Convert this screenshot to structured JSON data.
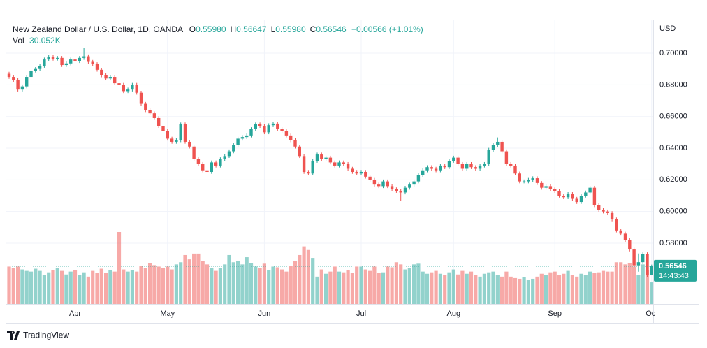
{
  "chart_data": {
    "type": "candlestick",
    "title": "New Zealand Dollar / U.S. Dollar, 1D, OANDA",
    "header_ohlc": [
      {
        "key": "O",
        "value": "0.55980"
      },
      {
        "key": "H",
        "value": "0.56647"
      },
      {
        "key": "L",
        "value": "0.55980"
      },
      {
        "key": "C",
        "value": "0.56546"
      }
    ],
    "change": "+0.00566 (+1.01%)",
    "vol_title": "Vol",
    "vol_value": "30.052K",
    "currency": "USD",
    "last_price_label": "0.56546",
    "countdown": "14:43:43",
    "brand": "TradingView",
    "up_color": "#26a69a",
    "down_color": "#ef5350",
    "grid": true,
    "ylim": [
      0.5416,
      0.7212
    ],
    "yticks": [
      {
        "value": 0.58,
        "label": "0.58000"
      },
      {
        "value": 0.6,
        "label": "0.60000"
      },
      {
        "value": 0.62,
        "label": "0.62000"
      },
      {
        "value": 0.64,
        "label": "0.64000"
      },
      {
        "value": 0.66,
        "label": "0.66000"
      },
      {
        "value": 0.68,
        "label": "0.68000"
      },
      {
        "value": 0.7,
        "label": "0.70000"
      }
    ],
    "categories": [
      null,
      null,
      null,
      null,
      null,
      null,
      null,
      null,
      null,
      null,
      null,
      null,
      null,
      null,
      null,
      "Apr",
      null,
      null,
      null,
      null,
      null,
      null,
      null,
      null,
      null,
      null,
      null,
      null,
      null,
      null,
      null,
      null,
      null,
      null,
      null,
      null,
      "May",
      null,
      null,
      null,
      null,
      null,
      null,
      null,
      null,
      null,
      null,
      null,
      null,
      null,
      null,
      null,
      null,
      null,
      null,
      null,
      null,
      null,
      "Jun",
      null,
      null,
      null,
      null,
      null,
      null,
      null,
      null,
      null,
      null,
      null,
      null,
      null,
      null,
      null,
      null,
      null,
      null,
      null,
      null,
      null,
      "Jul",
      null,
      null,
      null,
      null,
      null,
      null,
      null,
      null,
      null,
      null,
      null,
      null,
      null,
      null,
      null,
      null,
      null,
      null,
      null,
      null,
      "Aug",
      null,
      null,
      null,
      null,
      null,
      null,
      null,
      null,
      null,
      null,
      null,
      null,
      null,
      null,
      null,
      null,
      null,
      null,
      null,
      null,
      null,
      null,
      "Sep",
      null,
      null,
      null,
      null,
      null,
      null,
      null,
      null,
      null,
      null,
      null,
      null,
      null,
      null,
      null,
      null,
      null,
      null,
      null,
      null,
      null,
      "Oct"
    ],
    "open": [
      0.687,
      0.685,
      0.683,
      0.677,
      0.679,
      0.685,
      0.689,
      0.69,
      0.692,
      0.696,
      0.6975,
      0.6965,
      0.697,
      0.6925,
      0.6935,
      0.696,
      0.695,
      0.697,
      0.698,
      0.6945,
      0.693,
      0.6895,
      0.686,
      0.684,
      0.685,
      0.681,
      0.68,
      0.676,
      0.677,
      0.68,
      0.675,
      0.668,
      0.664,
      0.662,
      0.659,
      0.654,
      0.651,
      0.646,
      0.644,
      0.645,
      0.655,
      0.644,
      0.641,
      0.633,
      0.63,
      0.626,
      0.625,
      0.631,
      0.629,
      0.633,
      0.635,
      0.638,
      0.642,
      0.646,
      0.647,
      0.648,
      0.652,
      0.655,
      0.654,
      0.65,
      0.6545,
      0.6555,
      0.652,
      0.651,
      0.648,
      0.645,
      0.641,
      0.635,
      0.625,
      0.624,
      0.632,
      0.636,
      0.633,
      0.634,
      0.631,
      0.629,
      0.631,
      0.63,
      0.627,
      0.625,
      0.624,
      0.625,
      0.622,
      0.62,
      0.617,
      0.616,
      0.619,
      0.616,
      0.614,
      0.613,
      0.612,
      0.615,
      0.617,
      0.619,
      0.623,
      0.626,
      0.628,
      0.627,
      0.626,
      0.629,
      0.628,
      0.632,
      0.634,
      0.63,
      0.627,
      0.63,
      0.628,
      0.627,
      0.629,
      0.63,
      0.639,
      0.642,
      0.644,
      0.638,
      0.63,
      0.629,
      0.624,
      0.619,
      0.619,
      0.62,
      0.621,
      0.618,
      0.615,
      0.616,
      0.614,
      0.613,
      0.61,
      0.609,
      0.611,
      0.608,
      0.606,
      0.61,
      0.612,
      0.615,
      0.604,
      0.601,
      0.6,
      0.599,
      0.595,
      0.588,
      0.586,
      0.582,
      0.576,
      0.566,
      0.568,
      0.573,
      0.5598
    ],
    "high": [
      0.6882,
      0.6862,
      0.6842,
      0.6802,
      0.6862,
      0.6902,
      0.6912,
      0.6932,
      0.6972,
      0.6987,
      0.6987,
      0.6982,
      0.6982,
      0.6947,
      0.6972,
      0.6972,
      0.6982,
      0.7035,
      0.6992,
      0.6957,
      0.6942,
      0.6907,
      0.6872,
      0.6862,
      0.6862,
      0.6822,
      0.6812,
      0.6782,
      0.6812,
      0.6812,
      0.6762,
      0.6692,
      0.6652,
      0.6632,
      0.6602,
      0.6552,
      0.6522,
      0.6472,
      0.6462,
      0.6562,
      0.6562,
      0.6452,
      0.6422,
      0.6342,
      0.6312,
      0.6272,
      0.6322,
      0.6322,
      0.6342,
      0.6362,
      0.6392,
      0.6432,
      0.6472,
      0.6482,
      0.6492,
      0.6532,
      0.6562,
      0.6562,
      0.6552,
      0.6557,
      0.6567,
      0.6567,
      0.6532,
      0.6522,
      0.6492,
      0.6462,
      0.6422,
      0.6362,
      0.6262,
      0.6332,
      0.6372,
      0.6372,
      0.6352,
      0.6352,
      0.6322,
      0.6322,
      0.6322,
      0.6312,
      0.6282,
      0.6262,
      0.6262,
      0.6262,
      0.6232,
      0.6212,
      0.6182,
      0.6202,
      0.6202,
      0.6172,
      0.6152,
      0.6142,
      0.6162,
      0.6182,
      0.6202,
      0.6242,
      0.6272,
      0.6292,
      0.6292,
      0.6282,
      0.6302,
      0.6302,
      0.6332,
      0.6352,
      0.6352,
      0.6312,
      0.6312,
      0.6312,
      0.6292,
      0.6302,
      0.6312,
      0.6402,
      0.6432,
      0.6468,
      0.6452,
      0.6392,
      0.6312,
      0.6302,
      0.6252,
      0.6202,
      0.6212,
      0.6222,
      0.6222,
      0.6192,
      0.6172,
      0.6172,
      0.6152,
      0.6142,
      0.6112,
      0.6122,
      0.6122,
      0.6092,
      0.6112,
      0.6132,
      0.6162,
      0.6162,
      0.6052,
      0.6022,
      0.6012,
      0.6002,
      0.5962,
      0.5892,
      0.5872,
      0.5832,
      0.5772,
      0.5735,
      0.5742,
      0.5742,
      0.56647
    ],
    "low": [
      0.6838,
      0.6818,
      0.6758,
      0.6758,
      0.6778,
      0.6838,
      0.6878,
      0.6888,
      0.6908,
      0.6948,
      0.6953,
      0.6953,
      0.6913,
      0.6913,
      0.6923,
      0.6938,
      0.6938,
      0.6958,
      0.6933,
      0.6918,
      0.6883,
      0.6848,
      0.6828,
      0.6828,
      0.6798,
      0.6788,
      0.6748,
      0.6748,
      0.6758,
      0.6738,
      0.6668,
      0.6628,
      0.6608,
      0.6578,
      0.6528,
      0.6498,
      0.6448,
      0.6428,
      0.6428,
      0.6438,
      0.6428,
      0.6398,
      0.6318,
      0.6288,
      0.6248,
      0.6238,
      0.6238,
      0.6278,
      0.6278,
      0.6318,
      0.6338,
      0.6368,
      0.6408,
      0.6448,
      0.6458,
      0.6468,
      0.6508,
      0.6528,
      0.6488,
      0.6488,
      0.6533,
      0.6508,
      0.6498,
      0.6468,
      0.6438,
      0.6398,
      0.6338,
      0.6238,
      0.6228,
      0.6228,
      0.6308,
      0.6318,
      0.6318,
      0.6298,
      0.6278,
      0.6278,
      0.6288,
      0.6258,
      0.6238,
      0.6228,
      0.6228,
      0.6208,
      0.6188,
      0.6158,
      0.6148,
      0.6148,
      0.6148,
      0.6128,
      0.6118,
      0.6068,
      0.6108,
      0.6138,
      0.6158,
      0.6178,
      0.6218,
      0.6248,
      0.6258,
      0.6248,
      0.6248,
      0.6268,
      0.6268,
      0.6308,
      0.6288,
      0.6258,
      0.6258,
      0.6268,
      0.6258,
      0.6258,
      0.6278,
      0.6288,
      0.6378,
      0.6408,
      0.6368,
      0.6288,
      0.6278,
      0.6228,
      0.6178,
      0.6178,
      0.6178,
      0.6188,
      0.6168,
      0.6138,
      0.6138,
      0.6128,
      0.6118,
      0.6088,
      0.6078,
      0.6078,
      0.6068,
      0.6048,
      0.6048,
      0.6088,
      0.6108,
      0.6028,
      0.5998,
      0.5988,
      0.5978,
      0.5938,
      0.5868,
      0.5848,
      0.5808,
      0.5748,
      0.5648,
      0.562,
      0.5668,
      0.5586,
      0.5598
    ],
    "close": [
      0.685,
      0.683,
      0.677,
      0.679,
      0.685,
      0.689,
      0.69,
      0.692,
      0.696,
      0.6975,
      0.6965,
      0.697,
      0.6925,
      0.6935,
      0.696,
      0.695,
      0.697,
      0.698,
      0.6945,
      0.693,
      0.6895,
      0.686,
      0.684,
      0.685,
      0.681,
      0.68,
      0.676,
      0.677,
      0.68,
      0.675,
      0.668,
      0.664,
      0.662,
      0.659,
      0.654,
      0.651,
      0.646,
      0.644,
      0.645,
      0.655,
      0.644,
      0.641,
      0.633,
      0.63,
      0.626,
      0.625,
      0.631,
      0.629,
      0.633,
      0.635,
      0.638,
      0.642,
      0.646,
      0.647,
      0.648,
      0.652,
      0.655,
      0.654,
      0.65,
      0.6545,
      0.6555,
      0.652,
      0.651,
      0.648,
      0.645,
      0.641,
      0.635,
      0.625,
      0.624,
      0.632,
      0.636,
      0.633,
      0.634,
      0.631,
      0.629,
      0.631,
      0.63,
      0.627,
      0.625,
      0.624,
      0.625,
      0.622,
      0.62,
      0.617,
      0.616,
      0.619,
      0.616,
      0.614,
      0.613,
      0.612,
      0.615,
      0.617,
      0.619,
      0.623,
      0.626,
      0.628,
      0.627,
      0.626,
      0.629,
      0.628,
      0.632,
      0.634,
      0.63,
      0.627,
      0.63,
      0.628,
      0.627,
      0.629,
      0.63,
      0.639,
      0.642,
      0.644,
      0.638,
      0.63,
      0.629,
      0.624,
      0.619,
      0.619,
      0.62,
      0.621,
      0.618,
      0.615,
      0.616,
      0.614,
      0.613,
      0.61,
      0.609,
      0.611,
      0.608,
      0.606,
      0.61,
      0.612,
      0.615,
      0.604,
      0.601,
      0.6,
      0.599,
      0.595,
      0.588,
      0.586,
      0.582,
      0.576,
      0.566,
      0.568,
      0.573,
      0.5598,
      0.56546
    ],
    "volume": [
      52,
      50,
      52,
      48,
      46,
      45,
      49,
      46,
      40,
      44,
      47,
      50,
      46,
      41,
      45,
      47,
      40,
      44,
      38,
      46,
      43,
      49,
      43,
      47,
      45,
      100,
      48,
      45,
      47,
      45,
      53,
      50,
      57,
      54,
      52,
      50,
      52,
      48,
      55,
      58,
      68,
      62,
      70,
      70,
      60,
      55,
      50,
      46,
      50,
      55,
      68,
      58,
      60,
      55,
      65,
      57,
      52,
      50,
      56,
      47,
      52,
      51,
      48,
      45,
      53,
      60,
      68,
      80,
      75,
      64,
      38,
      48,
      42,
      45,
      52,
      45,
      44,
      47,
      43,
      52,
      52,
      48,
      46,
      52,
      43,
      44,
      52,
      51,
      58,
      55,
      48,
      50,
      55,
      56,
      45,
      42,
      44,
      46,
      42,
      40,
      44,
      48,
      41,
      46,
      42,
      45,
      40,
      38,
      42,
      44,
      45,
      40,
      38,
      45,
      38,
      36,
      35,
      37,
      33,
      35,
      38,
      42,
      40,
      44,
      45,
      40,
      42,
      46,
      40,
      38,
      42,
      40,
      45,
      43,
      44,
      46,
      45,
      45,
      58,
      58,
      55,
      57,
      52,
      40,
      55,
      47,
      30.052
    ]
  }
}
